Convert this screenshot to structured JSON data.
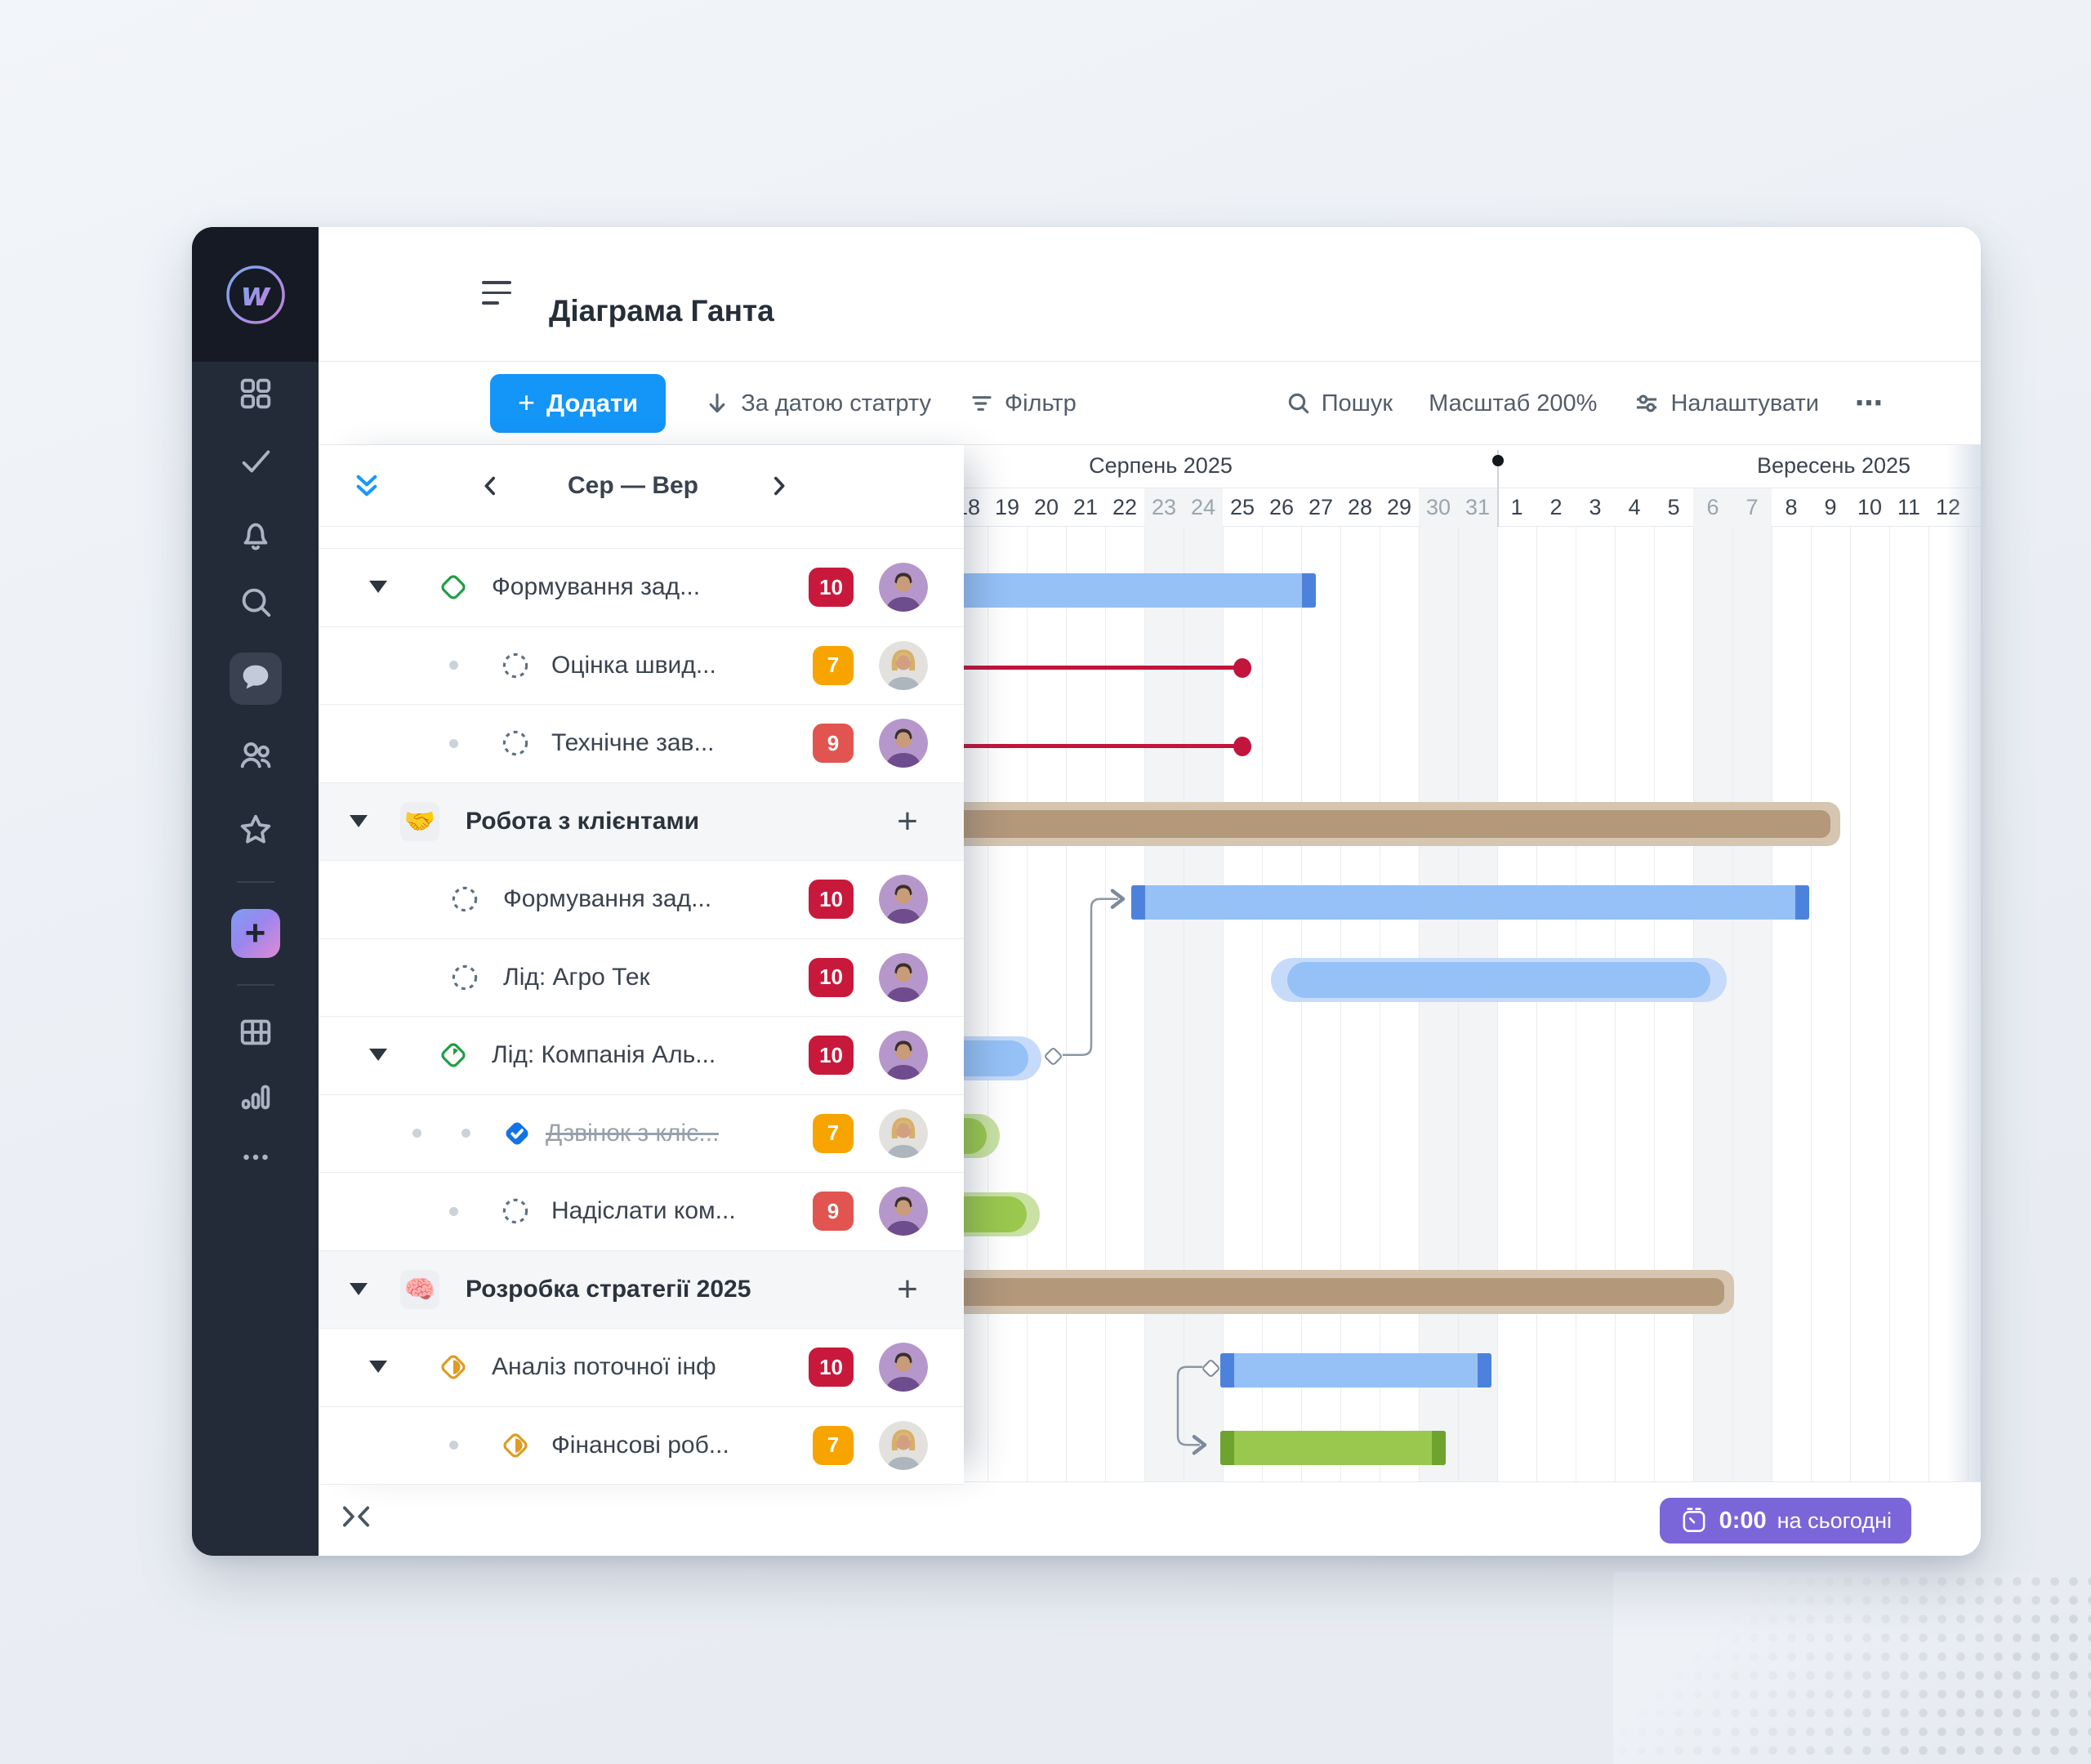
{
  "header": {
    "title": "Діаграма Ганта"
  },
  "toolbar": {
    "add_label": "Додати",
    "sort_label": "За датою статрту",
    "filter_label": "Фільтр",
    "search_label": "Пошук",
    "zoom_label": "Масштаб 200%",
    "settings_label": "Налаштувати",
    "more_label": "⋯"
  },
  "sidebar": {
    "icons": [
      "apps",
      "tasks-check",
      "notifications-bell",
      "search",
      "chat",
      "people",
      "star",
      "add-plus",
      "table",
      "bar-chart",
      "more"
    ]
  },
  "panel": {
    "range_label": "Сер — Вер"
  },
  "timeline": {
    "months": [
      {
        "name": "Серпень 2025",
        "days": [
          18,
          19,
          20,
          21,
          22,
          23,
          24,
          25,
          26,
          27,
          28,
          29,
          30,
          31
        ],
        "weekends": [
          23,
          24,
          30,
          31
        ]
      },
      {
        "name": "Вересень 2025",
        "days": [
          1,
          2,
          3,
          4,
          5,
          6,
          7,
          8,
          9,
          10,
          11,
          12
        ],
        "weekends": [
          6,
          7
        ]
      }
    ]
  },
  "tasks": [
    {
      "kind": "task",
      "level": 1,
      "caret": true,
      "icon": "diamond-open-green",
      "label": "Формування зад...",
      "badge": {
        "text": "10",
        "color": "red"
      },
      "avatar": "man"
    },
    {
      "kind": "task",
      "level": 2,
      "dots": 1,
      "icon": "dashed-circle",
      "label": "Оцінка швид...",
      "badge": {
        "text": "7",
        "color": "orange"
      },
      "avatar": "blonde"
    },
    {
      "kind": "task",
      "level": 2,
      "dots": 1,
      "icon": "dashed-circle",
      "label": "Технічне зав...",
      "badge": {
        "text": "9",
        "color": "salmon"
      },
      "avatar": "man"
    },
    {
      "kind": "group",
      "caret": true,
      "emoji": "🤝",
      "label": "Робота з клієнтами",
      "plus": true
    },
    {
      "kind": "task",
      "level": 2,
      "dots": 0,
      "icon": "dashed-circle",
      "label": "Формування зад...",
      "badge": {
        "text": "10",
        "color": "red"
      },
      "avatar": "man"
    },
    {
      "kind": "task",
      "level": 2,
      "dots": 0,
      "icon": "dashed-circle",
      "label": "Лід: Агро Тек",
      "badge": {
        "text": "10",
        "color": "red"
      },
      "avatar": "man"
    },
    {
      "kind": "task",
      "level": 1,
      "caret": true,
      "icon": "diamond-progress-green",
      "label": "Лід: Компанія Аль...",
      "badge": {
        "text": "10",
        "color": "red"
      },
      "avatar": "man"
    },
    {
      "kind": "task",
      "level": 3,
      "dots": 2,
      "icon": "check-diamond-blue",
      "label": "Дзвінок з кліє...",
      "strike": true,
      "badge": {
        "text": "7",
        "color": "orange"
      },
      "avatar": "blonde"
    },
    {
      "kind": "task",
      "level": 2,
      "dots": 1,
      "icon": "dashed-circle",
      "label": "Надіслати ком...",
      "badge": {
        "text": "9",
        "color": "salmon"
      },
      "avatar": "man"
    },
    {
      "kind": "group",
      "caret": true,
      "emoji": "🧠",
      "label": "Розробка стратегії 2025",
      "plus": true
    },
    {
      "kind": "task",
      "level": 1,
      "caret": true,
      "icon": "diamond-progress-amber",
      "label": "Аналіз поточної інф",
      "badge": {
        "text": "10",
        "color": "red"
      },
      "avatar": "man"
    },
    {
      "kind": "task",
      "level": 2,
      "dots": 1,
      "icon": "diamond-progress-amber",
      "label": "Фінансові роб...",
      "badge": {
        "text": "7",
        "color": "orange"
      },
      "avatar": "blonde"
    }
  ],
  "gantt": {
    "bars": [
      {
        "row": 1,
        "type": "bar",
        "color": "blue",
        "start": -2,
        "end": 9.38,
        "capRight": true,
        "clipLeft": true
      },
      {
        "row": 2,
        "type": "deadline",
        "start": -2,
        "end": 7.5
      },
      {
        "row": 3,
        "type": "deadline",
        "start": -2,
        "end": 7.5
      },
      {
        "row": 4,
        "type": "project",
        "start": -2,
        "end": 22.58,
        "clipLeft": true
      },
      {
        "row": 5,
        "type": "bar",
        "color": "blue",
        "start": 4.67,
        "end": 21.96,
        "capLeft": true,
        "capRight": true
      },
      {
        "row": 6,
        "type": "pill",
        "color": "blue",
        "start": 8.65,
        "end": 19.44,
        "halo": true
      },
      {
        "row": 7,
        "type": "pill",
        "color": "blue",
        "start": -2,
        "end": 2.04,
        "halo": true,
        "clipLeft": true
      },
      {
        "row": 8,
        "type": "pill",
        "color": "green",
        "start": -2,
        "end": 0.98,
        "halo": true,
        "clipLeft": true
      },
      {
        "row": 9,
        "type": "pill",
        "color": "green",
        "start": -2,
        "end": 2.0,
        "halo": true,
        "clipLeft": true
      },
      {
        "row": 10,
        "type": "project",
        "start": -2,
        "end": 19.88,
        "clipLeft": true
      },
      {
        "row": 11,
        "type": "bar",
        "color": "blue",
        "start": 6.94,
        "end": 13.85,
        "capLeft": true,
        "capRight": true
      },
      {
        "row": 12,
        "type": "bar",
        "color": "green",
        "start": 6.94,
        "end": 12.69,
        "capLeft": true,
        "capRight": true
      }
    ],
    "nodes": [
      {
        "day": 2.69,
        "row": 7
      },
      {
        "day": 6.71,
        "row": 11
      }
    ],
    "connectors": [
      {
        "fromDay": 2.92,
        "fromRow": 7,
        "viaDay": 3.65,
        "toDay": 4.45,
        "toRow": 5
      },
      {
        "fromDay": 6.48,
        "fromRow": 11,
        "viaDay": 5.85,
        "toDay": 6.55,
        "toRow": 12
      }
    ]
  },
  "footer": {
    "time": "0:00",
    "label": "на сьогодні"
  },
  "colors": {
    "badge": {
      "red": "#c8193c",
      "orange": "#f7a400",
      "salmon": "#e25450"
    },
    "bars": {
      "blueLight": "#95c1f7",
      "blueDark": "#4d82dc",
      "greenLight": "#9ac84e",
      "greenDark": "#6da32e",
      "pillHaloBlue": "#c6dbf9",
      "pillHaloGreen": "#c9e2a4",
      "brown": "#b3987a",
      "brownHalo": "#d6c6b1",
      "deadline": "#c2143c"
    },
    "accent": "#1495f8",
    "timeBadge": "#7a66d8"
  }
}
